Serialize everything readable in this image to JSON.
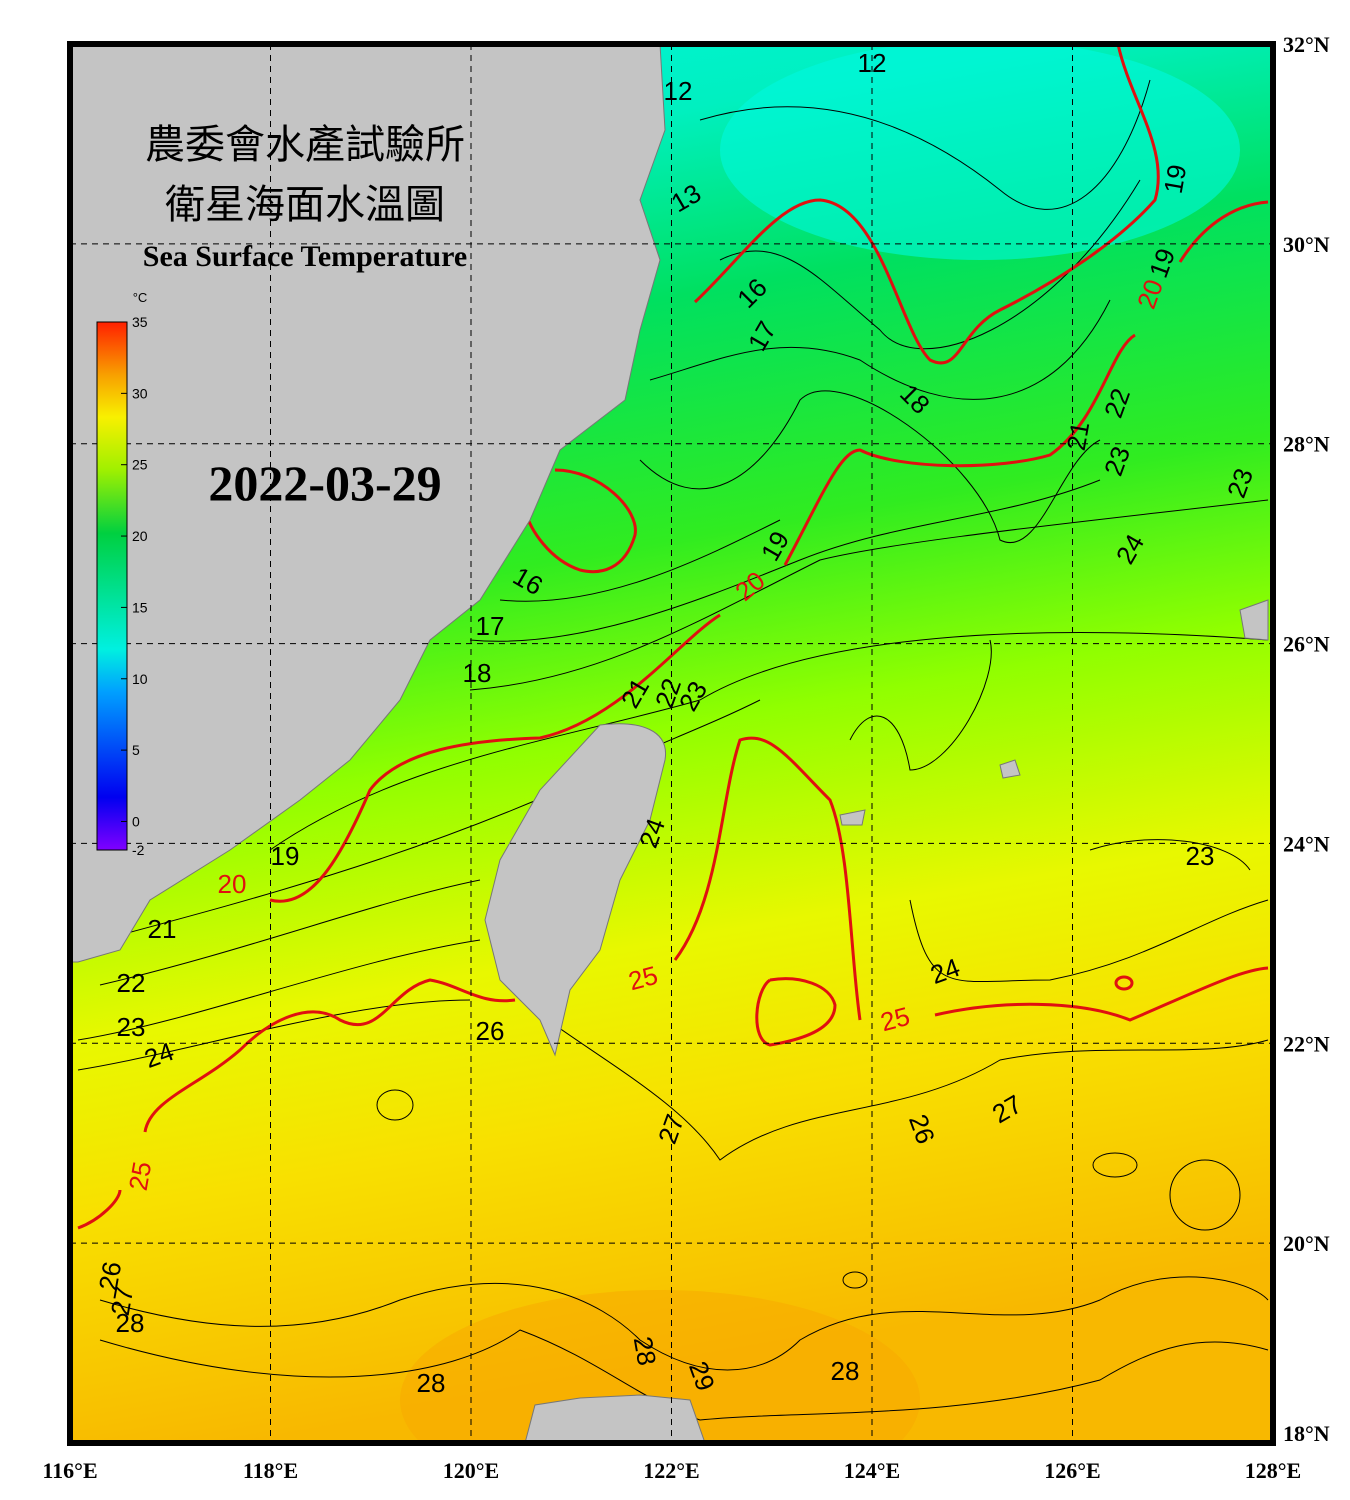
{
  "title": {
    "line1": "農委會水產試驗所",
    "line2": "衛星海面水溫圖",
    "english": "Sea Surface Temperature"
  },
  "date": "2022-03-29",
  "colorbar": {
    "unit": "°C",
    "ticks": [
      35,
      30,
      25,
      20,
      15,
      10,
      5,
      0,
      -2
    ]
  },
  "axes": {
    "longitude": [
      "116°E",
      "118°E",
      "120°E",
      "122°E",
      "124°E",
      "126°E",
      "128°E"
    ],
    "latitude": [
      "32°N",
      "30°N",
      "28°N",
      "26°N",
      "24°N",
      "22°N",
      "20°N",
      "18°N"
    ]
  },
  "contour_labels": [
    "12",
    "12",
    "13",
    "16",
    "17",
    "18",
    "19",
    "19",
    "22",
    "21",
    "23",
    "23",
    "24",
    "19",
    "16",
    "17",
    "18",
    "21",
    "22",
    "23",
    "24",
    "19",
    "21",
    "22",
    "23",
    "24",
    "26",
    "24",
    "23",
    "27",
    "26",
    "27",
    "26",
    "27",
    "28",
    "28",
    "29",
    "28",
    "28",
    "20",
    "20",
    "20",
    "25",
    "25",
    "25"
  ]
}
